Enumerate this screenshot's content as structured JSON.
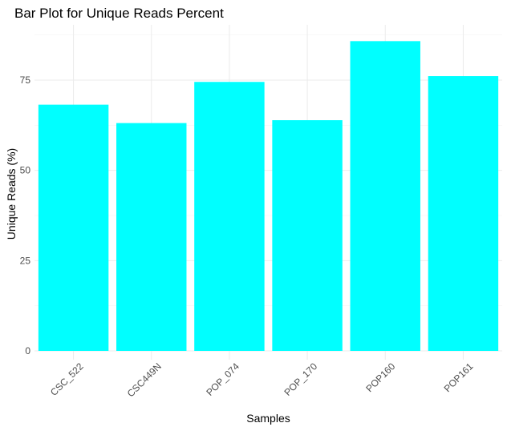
{
  "chart_data": {
    "type": "bar",
    "title": "Bar Plot for Unique Reads Percent",
    "xlabel": "Samples",
    "ylabel": "Unique Reads (%)",
    "categories": [
      "CSC_522",
      "CSC449N",
      "POP_074",
      "POP_170",
      "POP160",
      "POP161"
    ],
    "values": [
      68.2,
      63.1,
      74.5,
      63.9,
      85.8,
      76.1
    ],
    "ylim": [
      0,
      90
    ],
    "yticks": [
      0,
      25,
      50,
      75
    ],
    "ytick_labels": [
      "0",
      "25",
      "50",
      "75"
    ],
    "bar_color": "#00FFFF",
    "grid": true,
    "legend": "none"
  }
}
